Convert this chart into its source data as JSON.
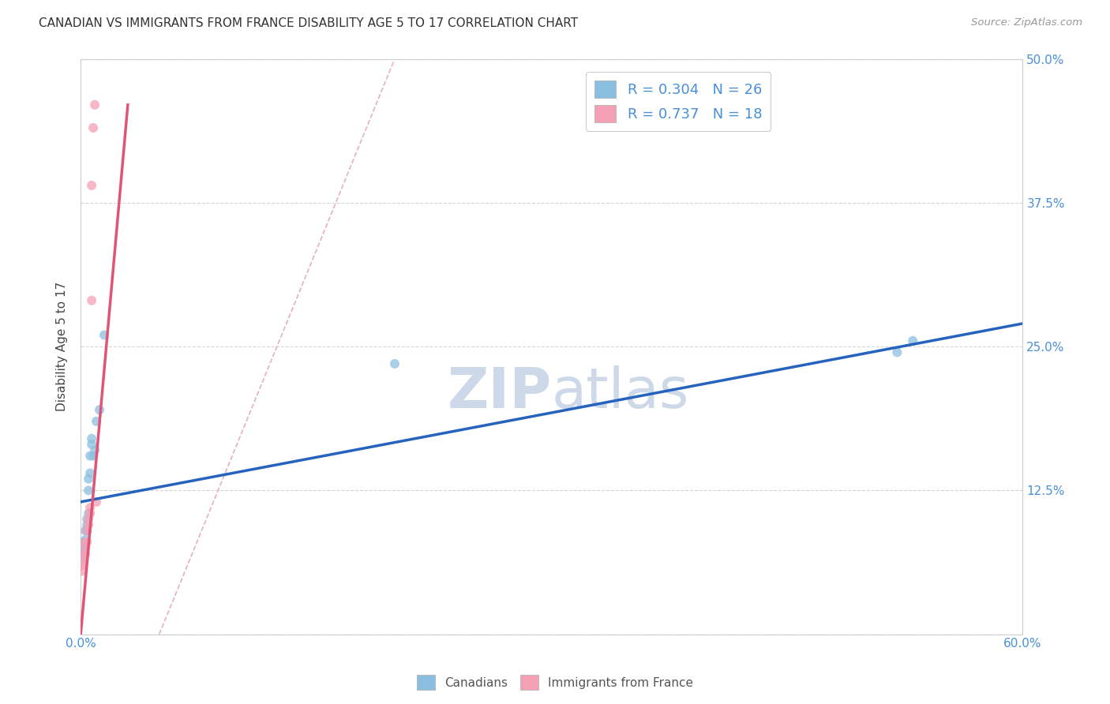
{
  "title": "CANADIAN VS IMMIGRANTS FROM FRANCE DISABILITY AGE 5 TO 17 CORRELATION CHART",
  "source": "Source: ZipAtlas.com",
  "ylabel": "Disability Age 5 to 17",
  "xlim": [
    0.0,
    0.6
  ],
  "ylim": [
    0.0,
    0.5
  ],
  "xticks": [
    0.0,
    0.1,
    0.2,
    0.3,
    0.4,
    0.5,
    0.6
  ],
  "yticks": [
    0.0,
    0.125,
    0.25,
    0.375,
    0.5
  ],
  "xtick_labels": [
    "0.0%",
    "",
    "",
    "",
    "",
    "",
    "60.0%"
  ],
  "ytick_labels_right": [
    "",
    "12.5%",
    "25.0%",
    "37.5%",
    "50.0%"
  ],
  "canadians_x": [
    0.001,
    0.001,
    0.002,
    0.002,
    0.002,
    0.003,
    0.003,
    0.003,
    0.004,
    0.004,
    0.004,
    0.005,
    0.005,
    0.005,
    0.006,
    0.006,
    0.007,
    0.007,
    0.008,
    0.009,
    0.01,
    0.012,
    0.015,
    0.2,
    0.52,
    0.53
  ],
  "canadians_y": [
    0.065,
    0.07,
    0.065,
    0.072,
    0.08,
    0.075,
    0.082,
    0.09,
    0.09,
    0.095,
    0.1,
    0.105,
    0.125,
    0.135,
    0.14,
    0.155,
    0.165,
    0.17,
    0.155,
    0.16,
    0.185,
    0.195,
    0.26,
    0.235,
    0.245,
    0.255
  ],
  "france_x": [
    0.001,
    0.001,
    0.002,
    0.002,
    0.003,
    0.003,
    0.003,
    0.004,
    0.004,
    0.005,
    0.005,
    0.006,
    0.006,
    0.007,
    0.007,
    0.008,
    0.009,
    0.01
  ],
  "france_y": [
    0.055,
    0.06,
    0.062,
    0.068,
    0.07,
    0.075,
    0.08,
    0.08,
    0.09,
    0.095,
    0.1,
    0.105,
    0.11,
    0.29,
    0.39,
    0.44,
    0.46,
    0.115
  ],
  "blue_line_x": [
    0.0,
    0.6
  ],
  "blue_line_y": [
    0.115,
    0.27
  ],
  "pink_line_x": [
    0.0,
    0.03
  ],
  "pink_line_y": [
    0.0,
    0.46
  ],
  "ref_line_x": [
    0.05,
    0.2
  ],
  "ref_line_y": [
    0.0,
    0.5
  ],
  "dot_size": 75,
  "blue_dot_color": "#8bbfe0",
  "pink_dot_color": "#f4a0b5",
  "blue_line_color": "#2563be",
  "pink_line_color": "#e05575",
  "ref_line_color": "#e8b0bb",
  "watermark_color": "#cdd9e8",
  "background_color": "#ffffff",
  "grid_color": "#d5d5d5"
}
